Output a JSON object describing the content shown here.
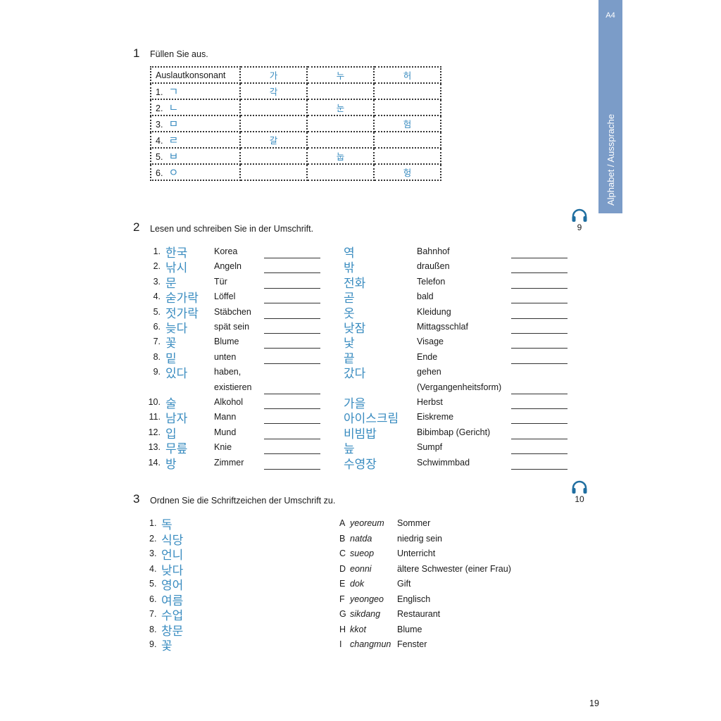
{
  "side_tab": {
    "code": "A4",
    "title": "Alphabet / Aussprache",
    "color": "#7b9cc8"
  },
  "accent_color": "#3a8cc0",
  "page_number": "19",
  "ex1": {
    "number": "1",
    "instruction": "Füllen Sie aus.",
    "header": [
      "Auslautkonsonant",
      "가",
      "누",
      "허"
    ],
    "rows": [
      {
        "label": "1.",
        "jamo": "ㄱ",
        "cells": [
          "각",
          "",
          ""
        ]
      },
      {
        "label": "2.",
        "jamo": "ㄴ",
        "cells": [
          "",
          "눈",
          ""
        ]
      },
      {
        "label": "3.",
        "jamo": "ㅁ",
        "cells": [
          "",
          "",
          "험"
        ]
      },
      {
        "label": "4.",
        "jamo": "ㄹ",
        "cells": [
          "갈",
          "",
          ""
        ]
      },
      {
        "label": "5.",
        "jamo": "ㅂ",
        "cells": [
          "",
          "눕",
          ""
        ]
      },
      {
        "label": "6.",
        "jamo": "ㅇ",
        "cells": [
          "",
          "",
          "헝"
        ]
      }
    ]
  },
  "ex2": {
    "number": "2",
    "instruction": "Lesen und schreiben Sie in der Umschrift.",
    "audio_track": "9",
    "rows": [
      {
        "n": "1.",
        "ko": "한국",
        "de": "Korea",
        "blank": true,
        "ko2": "역",
        "de2": "Bahnhof",
        "blank2": true
      },
      {
        "n": "2.",
        "ko": "낚시",
        "de": "Angeln",
        "blank": true,
        "ko2": "밖",
        "de2": "draußen",
        "blank2": true
      },
      {
        "n": "3.",
        "ko": "문",
        "de": "Tür",
        "blank": true,
        "ko2": "전화",
        "de2": "Telefon",
        "blank2": true
      },
      {
        "n": "4.",
        "ko": "숟가락",
        "de": "Löffel",
        "blank": true,
        "ko2": "곧",
        "de2": "bald",
        "blank2": true
      },
      {
        "n": "5.",
        "ko": "젓가락",
        "de": "Stäbchen",
        "blank": true,
        "ko2": "옷",
        "de2": "Kleidung",
        "blank2": true
      },
      {
        "n": "6.",
        "ko": "늦다",
        "de": "spät sein",
        "blank": true,
        "ko2": "낮잠",
        "de2": "Mittagsschlaf",
        "blank2": true
      },
      {
        "n": "7.",
        "ko": "꽃",
        "de": "Blume",
        "blank": true,
        "ko2": "낯",
        "de2": "Visage",
        "blank2": true
      },
      {
        "n": "8.",
        "ko": "밑",
        "de": "unten",
        "blank": true,
        "ko2": "끝",
        "de2": "Ende",
        "blank2": true
      },
      {
        "n": "9.",
        "ko": "있다",
        "de": "haben,",
        "blank": false,
        "ko2": "갔다",
        "de2": "gehen",
        "blank2": false
      },
      {
        "n": "",
        "ko": "",
        "de": "existieren",
        "blank": true,
        "ko2": "",
        "de2": "(Vergangenheitsform)",
        "blank2": true
      },
      {
        "n": "10.",
        "ko": "술",
        "de": "Alkohol",
        "blank": true,
        "ko2": "가을",
        "de2": "Herbst",
        "blank2": true
      },
      {
        "n": "11.",
        "ko": "남자",
        "de": "Mann",
        "blank": true,
        "ko2": "아이스크림",
        "de2": "Eiskreme",
        "blank2": true
      },
      {
        "n": "12.",
        "ko": "입",
        "de": "Mund",
        "blank": true,
        "ko2": "비빔밥",
        "de2": "Bibimbap  (Gericht)",
        "blank2": true
      },
      {
        "n": "13.",
        "ko": "무릎",
        "de": "Knie",
        "blank": true,
        "ko2": "늪",
        "de2": "Sumpf",
        "blank2": true
      },
      {
        "n": "14.",
        "ko": "방",
        "de": "Zimmer",
        "blank": true,
        "ko2": "수영장",
        "de2": "Schwimmbad",
        "blank2": true
      }
    ]
  },
  "ex3": {
    "number": "3",
    "instruction": "Ordnen Sie die Schriftzeichen der Umschrift zu.",
    "audio_track": "10",
    "left": [
      {
        "n": "1.",
        "ko": "독"
      },
      {
        "n": "2.",
        "ko": "식당"
      },
      {
        "n": "3.",
        "ko": "언니"
      },
      {
        "n": "4.",
        "ko": "낮다"
      },
      {
        "n": "5.",
        "ko": "영어"
      },
      {
        "n": "6.",
        "ko": "여름"
      },
      {
        "n": "7.",
        "ko": "수업"
      },
      {
        "n": "8.",
        "ko": "창문"
      },
      {
        "n": "9.",
        "ko": "꽃"
      }
    ],
    "right": [
      {
        "letter": "A",
        "rom": "yeoreum",
        "de": "Sommer"
      },
      {
        "letter": "B",
        "rom": "natda",
        "de": "niedrig sein"
      },
      {
        "letter": "C",
        "rom": "sueop",
        "de": "Unterricht"
      },
      {
        "letter": "D",
        "rom": "eonni",
        "de": "ältere Schwester (einer Frau)"
      },
      {
        "letter": "E",
        "rom": "dok",
        "de": "Gift"
      },
      {
        "letter": "F",
        "rom": "yeongeo",
        "de": "Englisch"
      },
      {
        "letter": "G",
        "rom": "sikdang",
        "de": "Restaurant"
      },
      {
        "letter": "H",
        "rom": "kkot",
        "de": "Blume"
      },
      {
        "letter": "I",
        "rom": "changmun",
        "de": "Fenster"
      }
    ]
  }
}
